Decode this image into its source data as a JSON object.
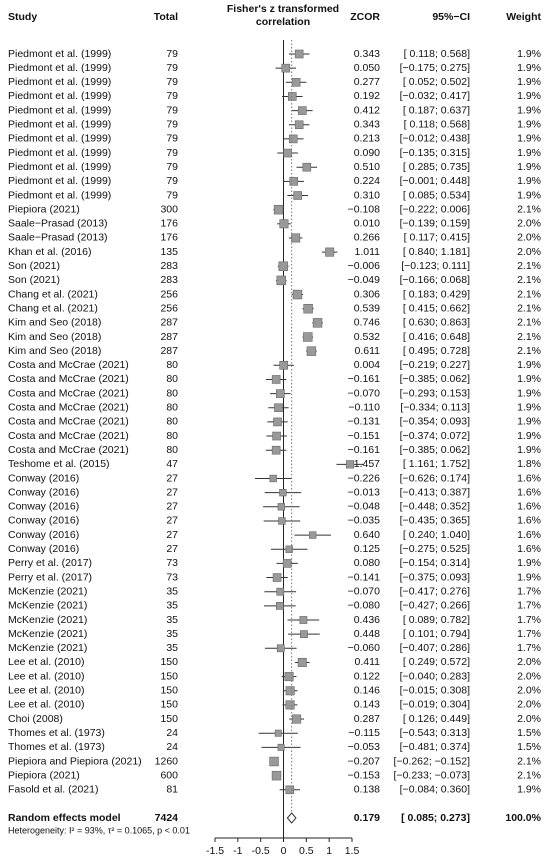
{
  "chart_data": {
    "type": "forest",
    "header": {
      "study": "Study",
      "total": "Total",
      "effect": [
        "Fisher's z transformed",
        "correlation"
      ],
      "zcor": "ZCOR",
      "ci": "95%−CI",
      "weight": "Weight"
    },
    "studies": [
      "Piedmont et al. (1999)",
      "Piedmont et al. (1999)",
      "Piedmont et al. (1999)",
      "Piedmont et al. (1999)",
      "Piedmont et al. (1999)",
      "Piedmont et al. (1999)",
      "Piedmont et al. (1999)",
      "Piedmont et al. (1999)",
      "Piedmont et al. (1999)",
      "Piedmont et al. (1999)",
      "Piedmont et al. (1999)",
      "Piepiora (2021)",
      "Saale−Prasad (2013)",
      "Saale−Prasad (2013)",
      "Khan et al. (2016)",
      "Son (2021)",
      "Son (2021)",
      "Chang et al. (2021)",
      "Chang et al. (2021)",
      "Kim and Seo (2018)",
      "Kim and Seo (2018)",
      "Kim and Seo (2018)",
      "Costa and McCrae (2021)",
      "Costa and McCrae (2021)",
      "Costa and McCrae (2021)",
      "Costa and McCrae (2021)",
      "Costa and McCrae (2021)",
      "Costa and McCrae (2021)",
      "Costa and McCrae (2021)",
      "Teshome et al. (2015)",
      "Conway (2016)",
      "Conway (2016)",
      "Conway (2016)",
      "Conway (2016)",
      "Conway (2016)",
      "Conway (2016)",
      "Perry et al. (2017)",
      "Perry et al. (2017)",
      "McKenzie (2021)",
      "McKenzie (2021)",
      "McKenzie (2021)",
      "McKenzie (2021)",
      "McKenzie (2021)",
      "Lee et al. (2010)",
      "Lee et al. (2010)",
      "Lee et al. (2010)",
      "Lee et al. (2010)",
      "Choi (2008)",
      "Thomes et al. (1973)",
      "Thomes et al. (1973)",
      "Piepiora and Piepiora (2021)",
      "Piepiora (2021)",
      "Fasold et al. (2021)"
    ],
    "totals": [
      79,
      79,
      79,
      79,
      79,
      79,
      79,
      79,
      79,
      79,
      79,
      300,
      176,
      176,
      135,
      283,
      283,
      256,
      256,
      287,
      287,
      287,
      80,
      80,
      80,
      80,
      80,
      80,
      80,
      47,
      27,
      27,
      27,
      27,
      27,
      27,
      73,
      73,
      35,
      35,
      35,
      35,
      35,
      150,
      150,
      150,
      150,
      150,
      24,
      24,
      1260,
      600,
      81
    ],
    "values": [
      0.343,
      0.05,
      0.277,
      0.192,
      0.412,
      0.343,
      0.213,
      0.09,
      0.51,
      0.224,
      0.31,
      -0.108,
      0.01,
      0.266,
      1.011,
      -0.006,
      -0.049,
      0.306,
      0.539,
      0.746,
      0.532,
      0.611,
      0.004,
      -0.161,
      -0.07,
      -0.11,
      -0.131,
      -0.151,
      -0.161,
      1.457,
      -0.226,
      -0.013,
      -0.048,
      -0.035,
      0.64,
      0.125,
      0.08,
      -0.141,
      -0.07,
      -0.08,
      0.436,
      0.448,
      -0.06,
      0.411,
      0.122,
      0.146,
      0.143,
      0.287,
      -0.115,
      -0.053,
      -0.207,
      -0.153,
      0.138
    ],
    "value_labels": [
      "0.343",
      "0.050",
      "0.277",
      "0.192",
      "0.412",
      "0.343",
      "0.213",
      "0.090",
      "0.510",
      "0.224",
      "0.310",
      "−0.108",
      "0.010",
      "0.266",
      "1.011",
      "−0.006",
      "−0.049",
      "0.306",
      "0.539",
      "0.746",
      "0.532",
      "0.611",
      "0.004",
      "−0.161",
      "−0.070",
      "−0.110",
      "−0.131",
      "−0.151",
      "−0.161",
      "1.457",
      "−0.226",
      "−0.013",
      "−0.048",
      "−0.035",
      "0.640",
      "0.125",
      "0.080",
      "−0.141",
      "−0.070",
      "−0.080",
      "0.436",
      "0.448",
      "−0.060",
      "0.411",
      "0.122",
      "0.146",
      "0.143",
      "0.287",
      "−0.115",
      "−0.053",
      "−0.207",
      "−0.153",
      "0.138"
    ],
    "ci_lower": [
      0.118,
      -0.175,
      0.052,
      -0.032,
      0.187,
      0.118,
      -0.012,
      -0.135,
      0.285,
      -0.001,
      0.085,
      -0.222,
      -0.139,
      0.117,
      0.84,
      -0.123,
      -0.166,
      0.183,
      0.415,
      0.63,
      0.416,
      0.495,
      -0.219,
      -0.385,
      -0.293,
      -0.334,
      -0.354,
      -0.374,
      -0.385,
      1.161,
      -0.626,
      -0.413,
      -0.448,
      -0.435,
      0.24,
      -0.275,
      -0.154,
      -0.375,
      -0.417,
      -0.427,
      0.089,
      0.101,
      -0.407,
      0.249,
      -0.04,
      -0.015,
      -0.019,
      0.126,
      -0.543,
      -0.481,
      -0.262,
      -0.233,
      -0.084
    ],
    "ci_upper": [
      0.568,
      0.275,
      0.502,
      0.417,
      0.637,
      0.568,
      0.438,
      0.315,
      0.735,
      0.448,
      0.534,
      0.006,
      0.159,
      0.415,
      1.181,
      0.111,
      0.068,
      0.429,
      0.662,
      0.863,
      0.648,
      0.728,
      0.227,
      0.062,
      0.153,
      0.113,
      0.093,
      0.072,
      0.062,
      1.752,
      0.174,
      0.387,
      0.352,
      0.365,
      1.04,
      0.525,
      0.314,
      0.093,
      0.276,
      0.266,
      0.782,
      0.794,
      0.286,
      0.572,
      0.283,
      0.308,
      0.304,
      0.449,
      0.313,
      0.374,
      -0.152,
      -0.073,
      0.36
    ],
    "ci_labels": [
      "[ 0.118; 0.568]",
      "[−0.175; 0.275]",
      "[ 0.052; 0.502]",
      "[−0.032; 0.417]",
      "[ 0.187; 0.637]",
      "[ 0.118; 0.568]",
      "[−0.012; 0.438]",
      "[−0.135; 0.315]",
      "[ 0.285; 0.735]",
      "[−0.001; 0.448]",
      "[ 0.085; 0.534]",
      "[−0.222; 0.006]",
      "[−0.139; 0.159]",
      "[ 0.117; 0.415]",
      "[ 0.840; 1.181]",
      "[−0.123; 0.111]",
      "[−0.166; 0.068]",
      "[ 0.183; 0.429]",
      "[ 0.415; 0.662]",
      "[ 0.630; 0.863]",
      "[ 0.416; 0.648]",
      "[ 0.495; 0.728]",
      "[−0.219; 0.227]",
      "[−0.385; 0.062]",
      "[−0.293; 0.153]",
      "[−0.334; 0.113]",
      "[−0.354; 0.093]",
      "[−0.374; 0.072]",
      "[−0.385; 0.062]",
      "[ 1.161; 1.752]",
      "[−0.626; 0.174]",
      "[−0.413; 0.387]",
      "[−0.448; 0.352]",
      "[−0.435; 0.365]",
      "[ 0.240; 1.040]",
      "[−0.275; 0.525]",
      "[−0.154; 0.314]",
      "[−0.375; 0.093]",
      "[−0.417; 0.276]",
      "[−0.427; 0.266]",
      "[ 0.089; 0.782]",
      "[ 0.101; 0.794]",
      "[−0.407; 0.286]",
      "[ 0.249; 0.572]",
      "[−0.040; 0.283]",
      "[−0.015; 0.308]",
      "[−0.019; 0.304]",
      "[ 0.126; 0.449]",
      "[−0.543; 0.313]",
      "[−0.481; 0.374]",
      "[−0.262; −0.152]",
      "[−0.233; −0.073]",
      "[−0.084; 0.360]"
    ],
    "weights": [
      1.9,
      1.9,
      1.9,
      1.9,
      1.9,
      1.9,
      1.9,
      1.9,
      1.9,
      1.9,
      1.9,
      2.1,
      2.0,
      2.0,
      2.0,
      2.1,
      2.1,
      2.1,
      2.1,
      2.1,
      2.1,
      2.1,
      1.9,
      1.9,
      1.9,
      1.9,
      1.9,
      1.9,
      1.9,
      1.8,
      1.6,
      1.6,
      1.6,
      1.6,
      1.6,
      1.6,
      1.9,
      1.9,
      1.7,
      1.7,
      1.7,
      1.7,
      1.7,
      2.0,
      2.0,
      2.0,
      2.0,
      2.0,
      1.5,
      1.5,
      2.1,
      2.1,
      1.9
    ],
    "weight_labels": [
      "1.9%",
      "1.9%",
      "1.9%",
      "1.9%",
      "1.9%",
      "1.9%",
      "1.9%",
      "1.9%",
      "1.9%",
      "1.9%",
      "1.9%",
      "2.1%",
      "2.0%",
      "2.0%",
      "2.0%",
      "2.1%",
      "2.1%",
      "2.1%",
      "2.1%",
      "2.1%",
      "2.1%",
      "2.1%",
      "1.9%",
      "1.9%",
      "1.9%",
      "1.9%",
      "1.9%",
      "1.9%",
      "1.9%",
      "1.8%",
      "1.6%",
      "1.6%",
      "1.6%",
      "1.6%",
      "1.6%",
      "1.6%",
      "1.9%",
      "1.9%",
      "1.7%",
      "1.7%",
      "1.7%",
      "1.7%",
      "1.7%",
      "2.0%",
      "2.0%",
      "2.0%",
      "2.0%",
      "2.0%",
      "1.5%",
      "1.5%",
      "2.1%",
      "2.1%",
      "1.9%"
    ],
    "summary": {
      "label": "Random effects model",
      "total": 7424,
      "value": 0.179,
      "value_label": "0.179",
      "ci_lower": 0.085,
      "ci_upper": 0.273,
      "ci_label": "[ 0.085; 0.273]",
      "weight": 100,
      "weight_label": "100.0%"
    },
    "heterogeneity": "Heterogeneity: I² = 93%, τ² = 0.1065, p < 0.01",
    "xlim": [
      -1.5,
      1.5
    ],
    "xticks": [
      -1.5,
      -1,
      -0.5,
      0,
      0.5,
      1,
      1.5
    ],
    "box_color": "#999999"
  }
}
